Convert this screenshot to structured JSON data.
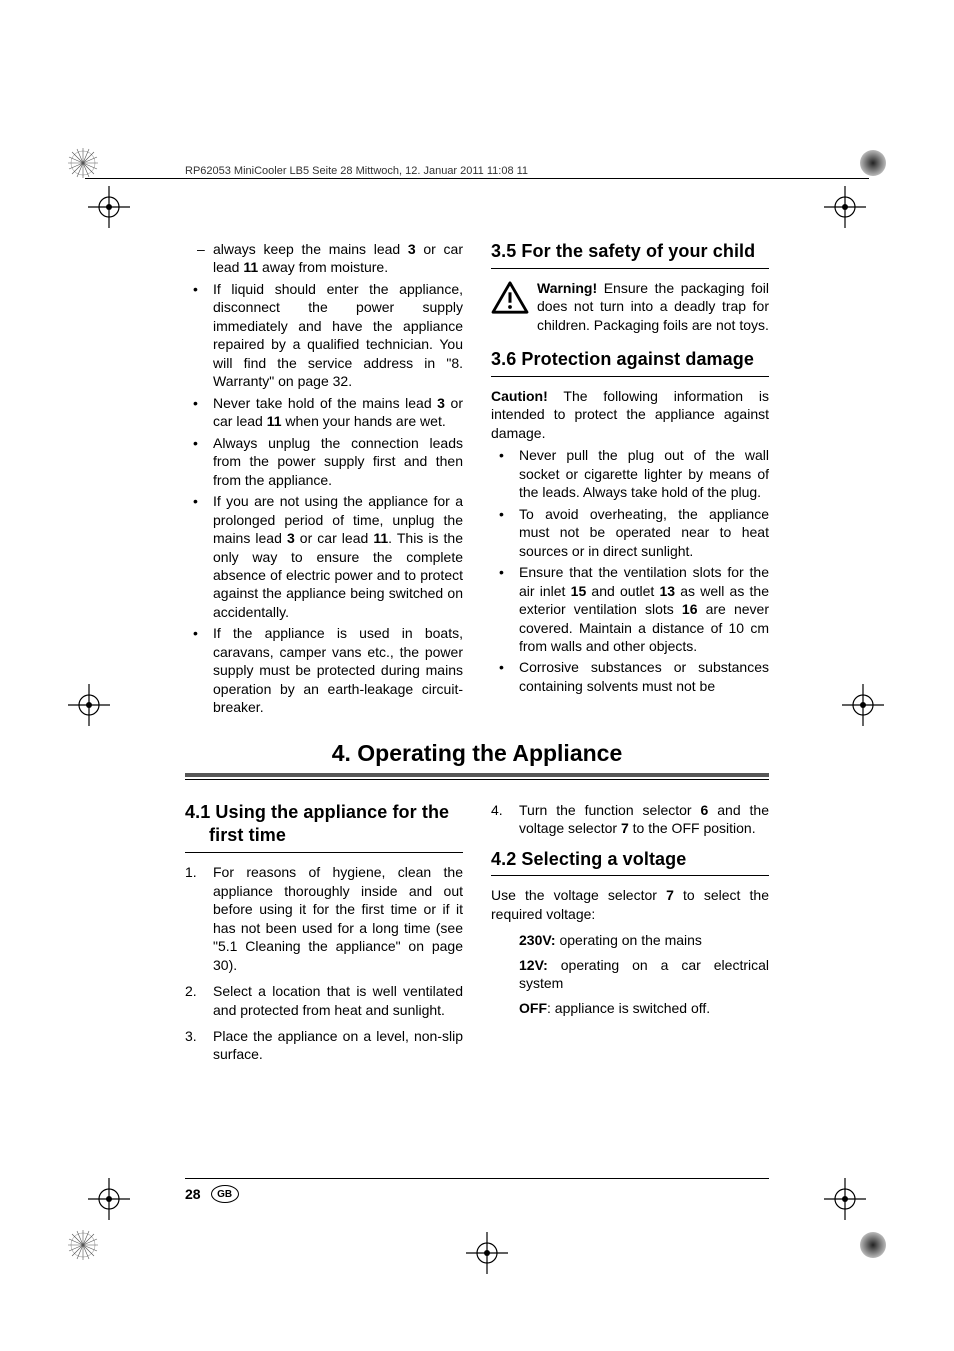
{
  "print_header": "RP62053 MiniCooler LB5  Seite 28  Mittwoch, 12. Januar 2011  11:08 11",
  "top": {
    "left": {
      "dash_item": "always keep the mains lead <b>3</b> or car lead <b>11</b> away from moisture.",
      "bullets": [
        "If liquid should enter the appliance, disconnect the power supply immediately and have the appliance repaired by a qualified technician. You will find the service address in \"8. Warranty\" on page 32.",
        "Never take hold of the mains lead <b>3</b> or car lead <b>11</b> when your hands are wet.",
        "Always unplug the connection leads from the power supply first and then from the appliance.",
        "If you are not using the appliance for a prolonged period of time, unplug the mains lead <b>3</b> or car lead <b>11</b>. This is the only way to ensure the complete absence of electric power and to protect against the appliance being switched on accidentally.",
        "If the appliance is used in boats, caravans, camper vans etc., the power supply must be protected during mains operation by an earth-leakage circuit-breaker."
      ]
    },
    "right": {
      "h_3_5": "3.5 For the safety of your child",
      "warning": "<b>Warning!</b> Ensure the packaging foil does not turn into a deadly trap for children. Packaging foils are not toys.",
      "h_3_6": "3.6 Protection against damage",
      "caution_intro": "<b>Caution!</b> The following information is intended to protect the appliance against damage.",
      "bullets": [
        "Never pull the plug out of the wall socket or cigarette lighter by means of the leads. Always take hold of the plug.",
        "To avoid overheating, the appliance must not be operated near to heat sources or in direct sunlight.",
        "Ensure that the ventilation slots for the air inlet <b>15</b> and outlet <b>13</b> as well as the exterior ventilation slots <b>16</b> are never covered. Maintain a distance of 10 cm from walls and other objects.",
        "Corrosive substances or substances containing solvents must not be"
      ]
    }
  },
  "section4_title": "4. Operating the Appliance",
  "bottom": {
    "left": {
      "h_4_1": "4.1 Using the appliance for the first time",
      "steps": [
        "For reasons of hygiene, clean the appliance thoroughly inside and out before using it for the first time or if it has not been used for a long time (see \"5.1 Cleaning the appliance\" on page 30).",
        "Select a location that is well ventilated and protected from heat and sunlight.",
        "Place the appliance on a level, non-slip surface."
      ]
    },
    "right": {
      "step4": "Turn the function selector <b>6</b> and the voltage selector <b>7</b> to the OFF position.",
      "h_4_2": "4.2 Selecting a voltage",
      "intro": "Use the voltage selector <b>7</b> to select the required voltage:",
      "opts": [
        "<b>230V:</b> operating on the mains",
        "<b>12V:</b> operating on a car electrical system",
        "<b>OFF</b>: appliance is switched off."
      ]
    }
  },
  "page_number": "28",
  "country": "GB",
  "colors": {
    "rule": "#575757"
  }
}
